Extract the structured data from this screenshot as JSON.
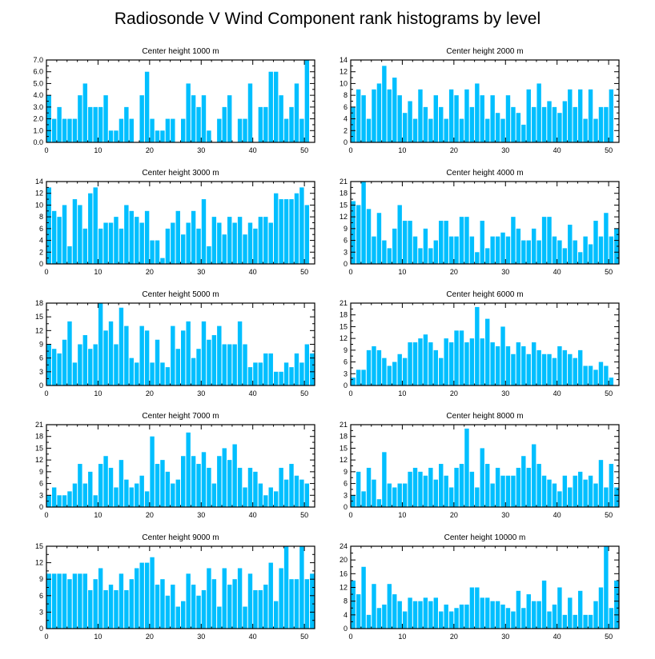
{
  "title": "Radiosonde V Wind Component rank histograms by level",
  "colors": {
    "bar": "#00bfff",
    "axis": "#000000",
    "background": "#ffffff"
  },
  "chart_data": [
    {
      "type": "bar",
      "title": "Center height 1000 m",
      "xlim": [
        0,
        52
      ],
      "xticks": [
        0,
        10,
        20,
        30,
        40,
        50
      ],
      "ylim": [
        0,
        7
      ],
      "yticks": [
        "0.0",
        "1.0",
        "2.0",
        "3.0",
        "4.0",
        "5.0",
        "6.0",
        "7.0"
      ],
      "values": [
        4,
        2,
        3,
        2,
        2,
        2,
        4,
        5,
        3,
        3,
        3,
        4,
        1,
        1,
        2,
        3,
        2,
        0,
        4,
        6,
        2,
        1,
        1,
        2,
        2,
        0,
        2,
        5,
        4,
        3,
        4,
        1,
        0,
        2,
        3,
        4,
        0,
        2,
        2,
        5,
        0,
        3,
        3,
        6,
        6,
        4,
        2,
        3,
        5,
        2,
        7,
        0
      ]
    },
    {
      "type": "bar",
      "title": "Center height 2000 m",
      "xlim": [
        0,
        52
      ],
      "xticks": [
        0,
        10,
        20,
        30,
        40,
        50
      ],
      "ylim": [
        0,
        14
      ],
      "yticks": [
        "0",
        "2",
        "4",
        "6",
        "8",
        "10",
        "12",
        "14"
      ],
      "values": [
        6,
        9,
        8,
        4,
        9,
        10,
        13,
        9,
        11,
        8,
        5,
        7,
        4,
        9,
        6,
        4,
        8,
        6,
        4,
        9,
        8,
        4,
        9,
        6,
        10,
        8,
        4,
        8,
        5,
        4,
        8,
        6,
        5,
        3,
        9,
        6,
        10,
        6,
        7,
        6,
        5,
        7,
        9,
        6,
        9,
        4,
        9,
        4,
        6,
        6,
        9,
        0
      ]
    },
    {
      "type": "bar",
      "title": "Center height 3000 m",
      "xlim": [
        0,
        52
      ],
      "xticks": [
        0,
        10,
        20,
        30,
        40,
        50
      ],
      "ylim": [
        0,
        14
      ],
      "yticks": [
        "0",
        "2",
        "4",
        "6",
        "8",
        "10",
        "12",
        "14"
      ],
      "values": [
        13,
        9,
        8,
        10,
        3,
        11,
        10,
        6,
        12,
        13,
        6,
        7,
        7,
        8,
        6,
        10,
        9,
        8,
        7,
        9,
        4,
        4,
        1,
        6,
        7,
        9,
        5,
        7,
        9,
        6,
        11,
        3,
        8,
        7,
        5,
        8,
        7,
        8,
        5,
        7,
        6,
        8,
        8,
        7,
        12,
        11,
        11,
        11,
        12,
        13,
        10,
        0
      ]
    },
    {
      "type": "bar",
      "title": "Center height 4000 m",
      "xlim": [
        0,
        52
      ],
      "xticks": [
        0,
        10,
        20,
        30,
        40,
        50
      ],
      "ylim": [
        0,
        21
      ],
      "yticks": [
        "0",
        "3",
        "6",
        "9",
        "12",
        "15",
        "18",
        "21"
      ],
      "values": [
        16,
        15,
        21,
        14,
        7,
        13,
        6,
        4,
        9,
        15,
        11,
        11,
        7,
        4,
        9,
        4,
        6,
        11,
        11,
        7,
        7,
        12,
        12,
        7,
        3,
        11,
        4,
        7,
        7,
        8,
        7,
        12,
        9,
        6,
        6,
        9,
        6,
        12,
        12,
        7,
        6,
        4,
        10,
        6,
        3,
        7,
        5,
        11,
        7,
        13,
        7,
        9
      ]
    },
    {
      "type": "bar",
      "title": "Center height 5000 m",
      "xlim": [
        0,
        52
      ],
      "xticks": [
        0,
        10,
        20,
        30,
        40,
        50
      ],
      "ylim": [
        0,
        18
      ],
      "yticks": [
        "0",
        "3",
        "6",
        "9",
        "12",
        "15",
        "18"
      ],
      "values": [
        9,
        8,
        7,
        10,
        14,
        5,
        9,
        11,
        8,
        9,
        18,
        12,
        14,
        9,
        17,
        13,
        6,
        5,
        13,
        12,
        5,
        10,
        5,
        4,
        13,
        8,
        12,
        14,
        6,
        8,
        14,
        10,
        11,
        13,
        9,
        9,
        9,
        14,
        9,
        4,
        5,
        5,
        7,
        7,
        3,
        3,
        5,
        4,
        7,
        5,
        9,
        7
      ]
    },
    {
      "type": "bar",
      "title": "Center height 6000 m",
      "xlim": [
        0,
        52
      ],
      "xticks": [
        0,
        10,
        20,
        30,
        40,
        50
      ],
      "ylim": [
        0,
        21
      ],
      "yticks": [
        "0",
        "3",
        "6",
        "9",
        "12",
        "15",
        "18",
        "21"
      ],
      "values": [
        2,
        4,
        4,
        9,
        10,
        9,
        7,
        5,
        6,
        8,
        7,
        11,
        11,
        12,
        13,
        11,
        9,
        7,
        12,
        11,
        14,
        14,
        11,
        12,
        20,
        12,
        17,
        11,
        10,
        15,
        10,
        8,
        11,
        10,
        8,
        11,
        9,
        8,
        8,
        7,
        10,
        9,
        8,
        7,
        9,
        5,
        5,
        4,
        6,
        5,
        2,
        0
      ]
    },
    {
      "type": "bar",
      "title": "Center height 7000 m",
      "xlim": [
        0,
        52
      ],
      "xticks": [
        0,
        10,
        20,
        30,
        40,
        50
      ],
      "ylim": [
        0,
        21
      ],
      "yticks": [
        "0",
        "3",
        "6",
        "9",
        "12",
        "15",
        "18",
        "21"
      ],
      "values": [
        3,
        5,
        3,
        3,
        4,
        6,
        11,
        6,
        9,
        3,
        11,
        13,
        10,
        5,
        12,
        7,
        5,
        6,
        8,
        4,
        18,
        11,
        12,
        9,
        6,
        7,
        13,
        19,
        13,
        11,
        14,
        10,
        6,
        13,
        15,
        12,
        16,
        10,
        5,
        10,
        9,
        6,
        3,
        5,
        4,
        10,
        7,
        11,
        8,
        7,
        6,
        0
      ]
    },
    {
      "type": "bar",
      "title": "Center height 8000 m",
      "xlim": [
        0,
        52
      ],
      "xticks": [
        0,
        10,
        20,
        30,
        40,
        50
      ],
      "ylim": [
        0,
        21
      ],
      "yticks": [
        "0",
        "3",
        "6",
        "9",
        "12",
        "15",
        "18",
        "21"
      ],
      "values": [
        3,
        9,
        4,
        10,
        7,
        2,
        14,
        6,
        5,
        6,
        6,
        9,
        10,
        9,
        8,
        10,
        7,
        11,
        8,
        5,
        10,
        11,
        20,
        9,
        5,
        15,
        11,
        6,
        10,
        8,
        8,
        8,
        10,
        13,
        10,
        16,
        11,
        8,
        7,
        6,
        4,
        8,
        5,
        8,
        9,
        7,
        8,
        6,
        12,
        5,
        11,
        5
      ]
    },
    {
      "type": "bar",
      "title": "Center height 9000 m",
      "xlim": [
        0,
        52
      ],
      "xticks": [
        0,
        10,
        20,
        30,
        40,
        50
      ],
      "ylim": [
        0,
        15
      ],
      "yticks": [
        "0",
        "3",
        "6",
        "9",
        "12",
        "15"
      ],
      "values": [
        10,
        10,
        10,
        10,
        9,
        10,
        10,
        10,
        7,
        9,
        11,
        7,
        8,
        7,
        10,
        7,
        9,
        11,
        12,
        12,
        13,
        8,
        9,
        6,
        8,
        4,
        5,
        10,
        8,
        6,
        7,
        11,
        9,
        4,
        11,
        8,
        9,
        11,
        4,
        10,
        7,
        7,
        8,
        12,
        5,
        11,
        15,
        9,
        9,
        15,
        9,
        10
      ]
    },
    {
      "type": "bar",
      "title": "Center height 10000 m",
      "xlim": [
        0,
        52
      ],
      "xticks": [
        0,
        10,
        20,
        30,
        40,
        50
      ],
      "ylim": [
        0,
        24
      ],
      "yticks": [
        "0",
        "4",
        "8",
        "12",
        "16",
        "20",
        "24"
      ],
      "values": [
        14,
        10,
        18,
        4,
        13,
        6,
        7,
        13,
        10,
        8,
        5,
        9,
        8,
        8,
        9,
        8,
        9,
        5,
        7,
        5,
        6,
        7,
        7,
        12,
        12,
        9,
        9,
        8,
        8,
        7,
        6,
        5,
        11,
        6,
        10,
        8,
        8,
        14,
        5,
        7,
        12,
        4,
        9,
        4,
        11,
        4,
        4,
        8,
        12,
        24,
        6,
        14
      ]
    }
  ]
}
